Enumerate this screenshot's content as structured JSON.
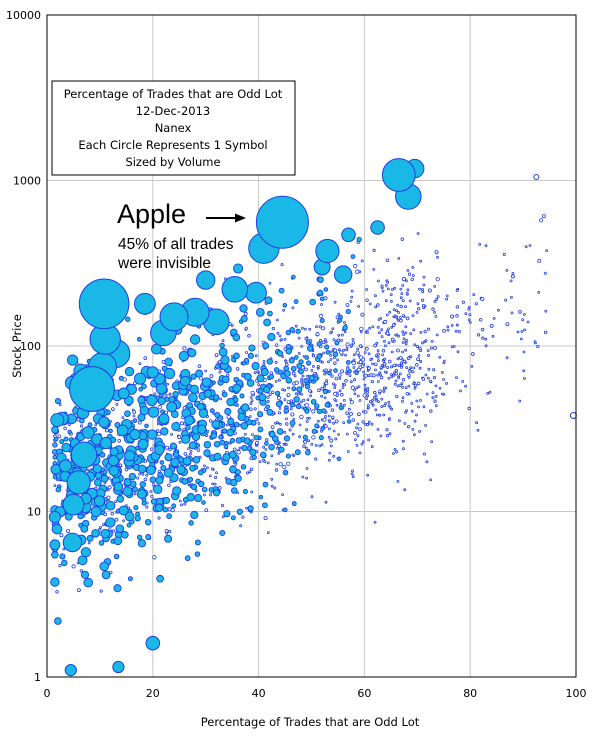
{
  "chart_data": {
    "type": "scatter",
    "subtype": "bubble",
    "xlabel": "Percentage of Trades that are Odd Lot",
    "ylabel": "Stock Price",
    "xlim": [
      0,
      100
    ],
    "ylim": [
      1,
      10000
    ],
    "yscale": "log",
    "x_ticks": [
      "0",
      "20",
      "40",
      "60",
      "80",
      "100"
    ],
    "y_ticks": [
      "1",
      "10",
      "100",
      "1000",
      "10000"
    ],
    "grid": true,
    "bubble_color": "#19b8e6",
    "bubble_edge_color": "#1f3fe0",
    "info_box_lines": [
      "Percentage of Trades that are Odd Lot",
      "12-Dec-2013",
      "Nanex",
      "Each Circle Represents 1 Symbol",
      "Sized by Volume"
    ],
    "annotation": {
      "title": "Apple",
      "line1": "45% of all trades",
      "line2": "were invisible"
    },
    "labeled_points": [
      {
        "name": "Apple",
        "x": 44.5,
        "y": 560
      }
    ],
    "key_points": [
      {
        "x": 44.5,
        "y": 560,
        "size": 1.0
      },
      {
        "x": 10.8,
        "y": 180,
        "size": 0.95
      },
      {
        "x": 8.5,
        "y": 55,
        "size": 0.85
      },
      {
        "x": 66.5,
        "y": 1080,
        "size": 0.6
      },
      {
        "x": 68.3,
        "y": 800,
        "size": 0.45
      },
      {
        "x": 69.5,
        "y": 1180,
        "size": 0.3
      },
      {
        "x": 41.0,
        "y": 390,
        "size": 0.55
      },
      {
        "x": 53.0,
        "y": 375,
        "size": 0.4
      },
      {
        "x": 52.0,
        "y": 300,
        "size": 0.25
      },
      {
        "x": 57.0,
        "y": 470,
        "size": 0.2
      },
      {
        "x": 62.5,
        "y": 520,
        "size": 0.2
      },
      {
        "x": 56.0,
        "y": 270,
        "size": 0.28
      },
      {
        "x": 39.5,
        "y": 210,
        "size": 0.35
      },
      {
        "x": 35.5,
        "y": 220,
        "size": 0.45
      },
      {
        "x": 30.0,
        "y": 250,
        "size": 0.3
      },
      {
        "x": 28.0,
        "y": 160,
        "size": 0.5
      },
      {
        "x": 32.0,
        "y": 140,
        "size": 0.45
      },
      {
        "x": 24.0,
        "y": 150,
        "size": 0.5
      },
      {
        "x": 18.5,
        "y": 180,
        "size": 0.35
      },
      {
        "x": 22.0,
        "y": 120,
        "size": 0.45
      },
      {
        "x": 13.0,
        "y": 90,
        "size": 0.5
      },
      {
        "x": 11.0,
        "y": 110,
        "size": 0.55
      },
      {
        "x": 10.5,
        "y": 75,
        "size": 0.5
      },
      {
        "x": 7.0,
        "y": 22,
        "size": 0.45
      },
      {
        "x": 6.0,
        "y": 15,
        "size": 0.4
      },
      {
        "x": 5.0,
        "y": 11,
        "size": 0.35
      },
      {
        "x": 4.8,
        "y": 6.5,
        "size": 0.3
      },
      {
        "x": 20.0,
        "y": 1.6,
        "size": 0.2
      },
      {
        "x": 4.5,
        "y": 1.1,
        "size": 0.15
      },
      {
        "x": 13.5,
        "y": 1.15,
        "size": 0.15
      },
      {
        "x": 92.5,
        "y": 1050,
        "size": 0.02
      },
      {
        "x": 99.5,
        "y": 38,
        "size": 0.04
      }
    ],
    "cloud": {
      "count": 2100,
      "seed": 12345
    }
  }
}
